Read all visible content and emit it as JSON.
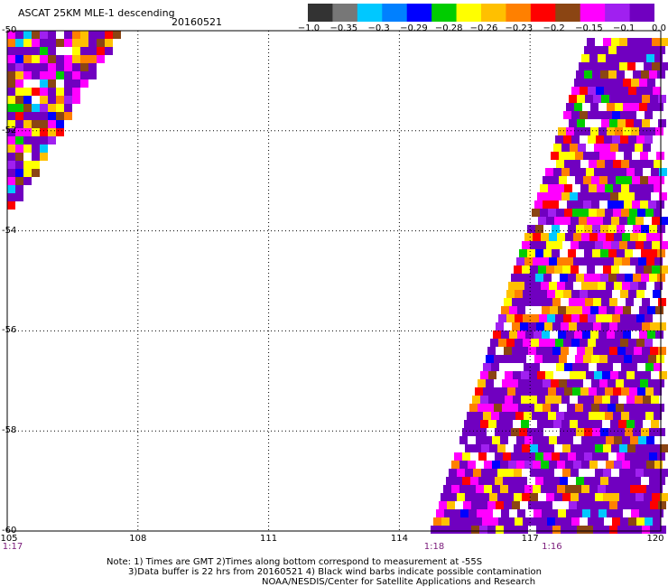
{
  "header": {
    "title": "ASCAT 25KM MLE-1 descending",
    "date": "20160521"
  },
  "legend": {
    "colors": [
      "#333333",
      "#777777",
      "#00c8ff",
      "#0080ff",
      "#0000ff",
      "#00cc00",
      "#ffff00",
      "#ffc000",
      "#ff8000",
      "#ff0000",
      "#8b4513",
      "#ff00ff",
      "#a020f0",
      "#7000c0"
    ],
    "labels": [
      "−1.0",
      "−0.35",
      "−0.3",
      "−0.29",
      "−0.28",
      "−0.26",
      "−0.23",
      "−0.2",
      "−0.15",
      "−0.1",
      "0.0"
    ]
  },
  "map": {
    "lon_range": [
      105,
      120
    ],
    "lat_range": [
      -60,
      -50
    ],
    "x_ticks": [
      "105",
      "108",
      "111",
      "114",
      "117",
      "120"
    ],
    "y_ticks": [
      "-50",
      "-52",
      "-54",
      "-56",
      "-58",
      "-60"
    ],
    "time_labels": [
      {
        "lon": 105,
        "text": "1:17"
      },
      {
        "lon": 114.8,
        "text": "1:18"
      },
      {
        "lon": 117.5,
        "text": "1:16"
      }
    ]
  },
  "notes": {
    "line1": "Note: 1) Times are GMT 2)Times along bottom correspond to measurement at -55S",
    "line2": "3)Data buffer is 22 hrs from 20160521 4) Black wind barbs indicate possible contamination",
    "line3": "NOAA/NESDIS/Center for Satellite Applications and Research"
  }
}
